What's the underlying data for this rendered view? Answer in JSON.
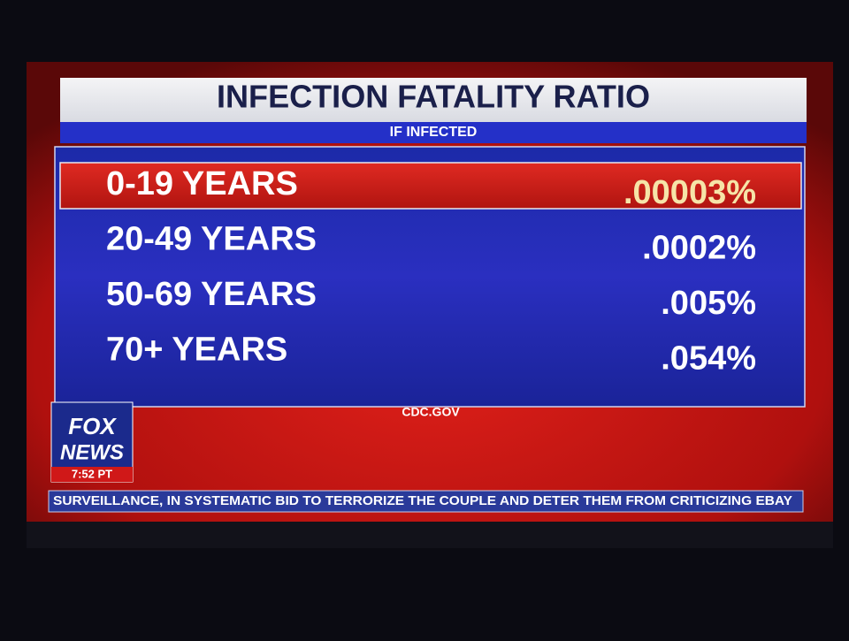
{
  "header": {
    "title": "INFECTION FATALITY RATIO",
    "subtitle": "IF INFECTED"
  },
  "table": {
    "rows": [
      [
        "0-19 YEARS",
        ".00003%"
      ],
      [
        "20-49 YEARS",
        ".0002%"
      ],
      [
        "50-69 YEARS",
        ".005%"
      ],
      [
        "70+ YEARS",
        ".054%"
      ]
    ]
  },
  "source": "CDC.GOV",
  "logo": {
    "line1": "FOX",
    "line2": "NEWS",
    "time": "7:52 PT"
  },
  "ticker": "SURVEILLANCE, IN SYSTEMATIC BID TO TERRORIZE THE COUPLE AND DETER THEM FROM CRITICIZING EBAY"
}
